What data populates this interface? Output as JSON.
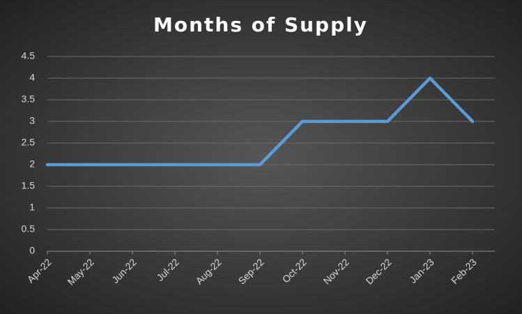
{
  "chart_data": {
    "type": "line",
    "title": "Months of Supply",
    "categories": [
      "Apr-22",
      "May-22",
      "Jun-22",
      "Jul-22",
      "Aug-22",
      "Sep-22",
      "Oct-22",
      "Nov-22",
      "Dec-22",
      "Jan-23",
      "Feb-23"
    ],
    "series": [
      {
        "name": "Months of Supply",
        "color": "#5b9bd5",
        "values": [
          2,
          2,
          2,
          2,
          2,
          2,
          3,
          3,
          3,
          4,
          3
        ]
      }
    ],
    "ylim": [
      0,
      4.5
    ],
    "yticks": [
      0,
      0.5,
      1,
      1.5,
      2,
      2.5,
      3,
      3.5,
      4,
      4.5
    ],
    "grid": true
  }
}
